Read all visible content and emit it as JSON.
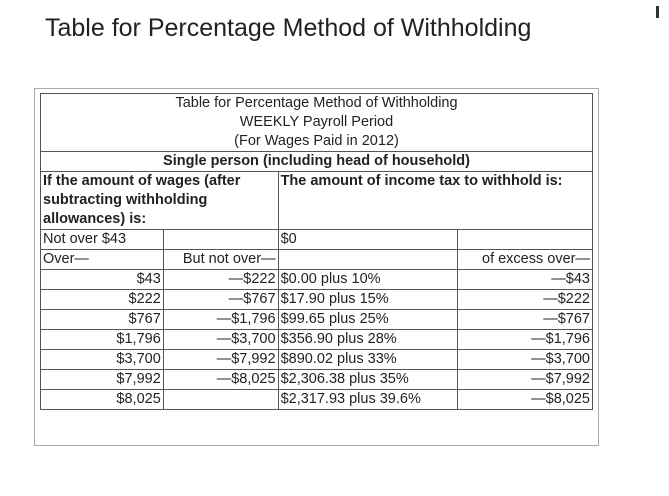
{
  "title": "Table for Percentage Method of Withholding",
  "table": {
    "caption": [
      "Table for Percentage Method of Withholding",
      "WEEKLY Payroll Period",
      "(For Wages Paid in 2012)"
    ],
    "subheading": "Single person (including head of household)",
    "column_headers": [
      "If the amount of wages (after subtracting withholding allowances) is:",
      "The amount of income tax to withhold is:"
    ],
    "rows": [
      [
        "Not over $43",
        null,
        "$0",
        null
      ],
      [
        "Over—",
        "But not over—",
        null,
        "of excess over—"
      ],
      [
        "$43",
        "—$222",
        "$0.00 plus 10%",
        "—$43"
      ],
      [
        "$222",
        "—$767",
        "$17.90 plus 15%",
        "—$222"
      ],
      [
        "$767",
        "—$1,796",
        "$99.65 plus 25%",
        "—$767"
      ],
      [
        "$1,796",
        "—$3,700",
        "$356.90 plus 28%",
        "—$1,796"
      ],
      [
        "$3,700",
        "—$7,992",
        "$890.02 plus 33%",
        "—$3,700"
      ],
      [
        "$7,992",
        "—$8,025",
        "$2,306.38 plus 35%",
        "—$7,992"
      ],
      [
        "$8,025",
        null,
        "$2,317.93 plus 39.6%",
        "—$8,025"
      ]
    ]
  }
}
